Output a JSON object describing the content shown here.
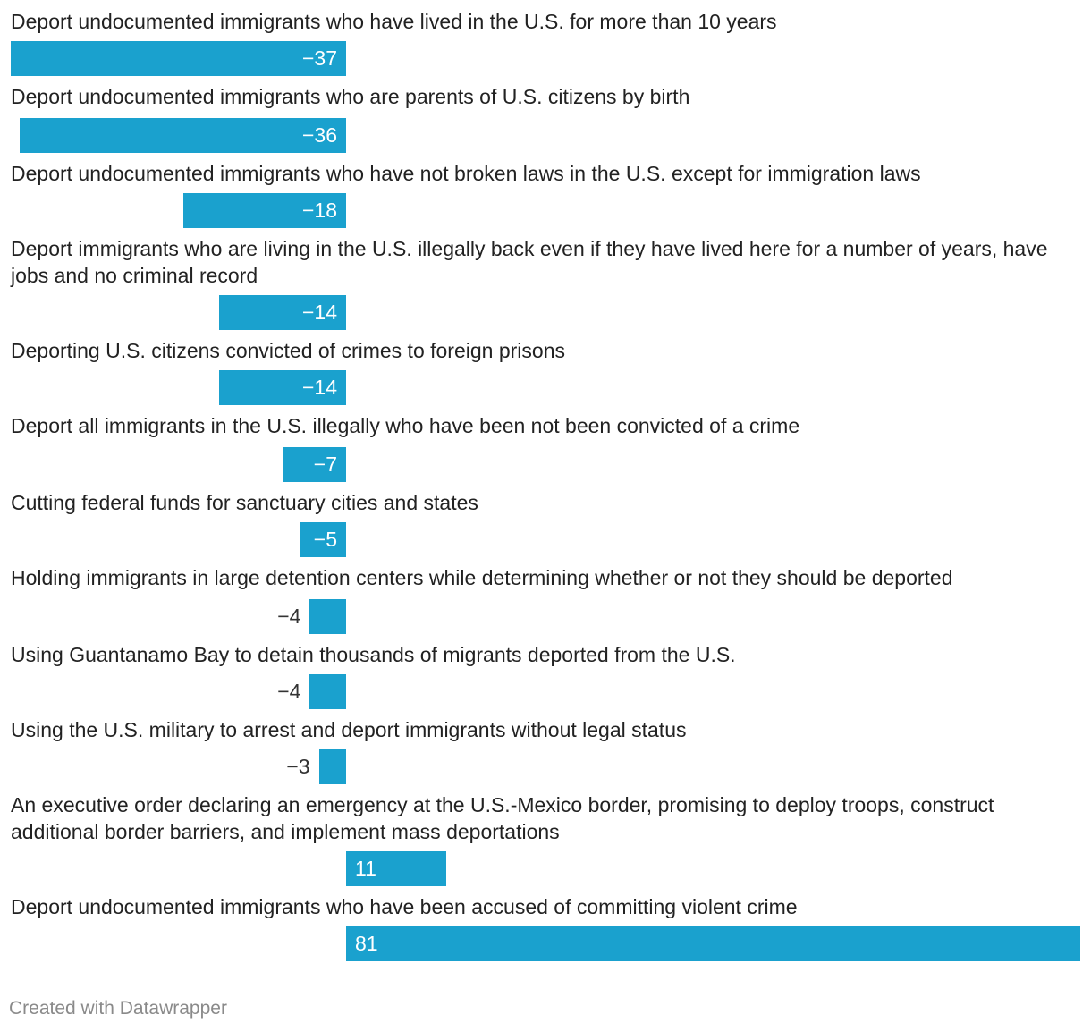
{
  "chart_data": {
    "type": "bar",
    "orientation": "horizontal",
    "title": "",
    "xlabel": "",
    "ylabel": "",
    "categories": [
      "Deport undocumented immigrants who have lived in the U.S. for more than 10 years",
      "Deport undocumented immigrants who are parents of U.S. citizens by birth",
      "Deport undocumented immigrants who have not broken laws in the U.S. except for immigration laws",
      "Deport immigrants who are living in the U.S. illegally back even if they have lived here for a number of years, have jobs and no criminal record",
      "Deporting U.S. citizens convicted of crimes to foreign prisons",
      "Deport all immigrants in the U.S. illegally who have been not been convicted of a crime",
      "Cutting federal funds for sanctuary cities and states",
      "Holding immigrants in large detention centers while determining whether or not they should be deported",
      "Using Guantanamo Bay to detain thousands of migrants deported from the U.S.",
      "Using the U.S. military to arrest and deport immigrants without legal status",
      "An executive order declaring an emergency at the U.S.-Mexico border, promising to deploy troops, construct additional border barriers, and implement mass deportations",
      "Deport undocumented immigrants who have been accused of committing violent crime"
    ],
    "values": [
      -37,
      -36,
      -18,
      -14,
      -14,
      -7,
      -5,
      -4,
      -4,
      -3,
      11,
      81
    ],
    "value_labels": [
      "−37",
      "−36",
      "−18",
      "−14",
      "−14",
      "−7",
      "−5",
      "−4",
      "−4",
      "−3",
      "11",
      "81"
    ],
    "xlim": [
      -37,
      81
    ],
    "grid": false,
    "legend": "none",
    "bar_color": "#1aa1ce"
  },
  "footer": {
    "credit": "Created with Datawrapper"
  }
}
